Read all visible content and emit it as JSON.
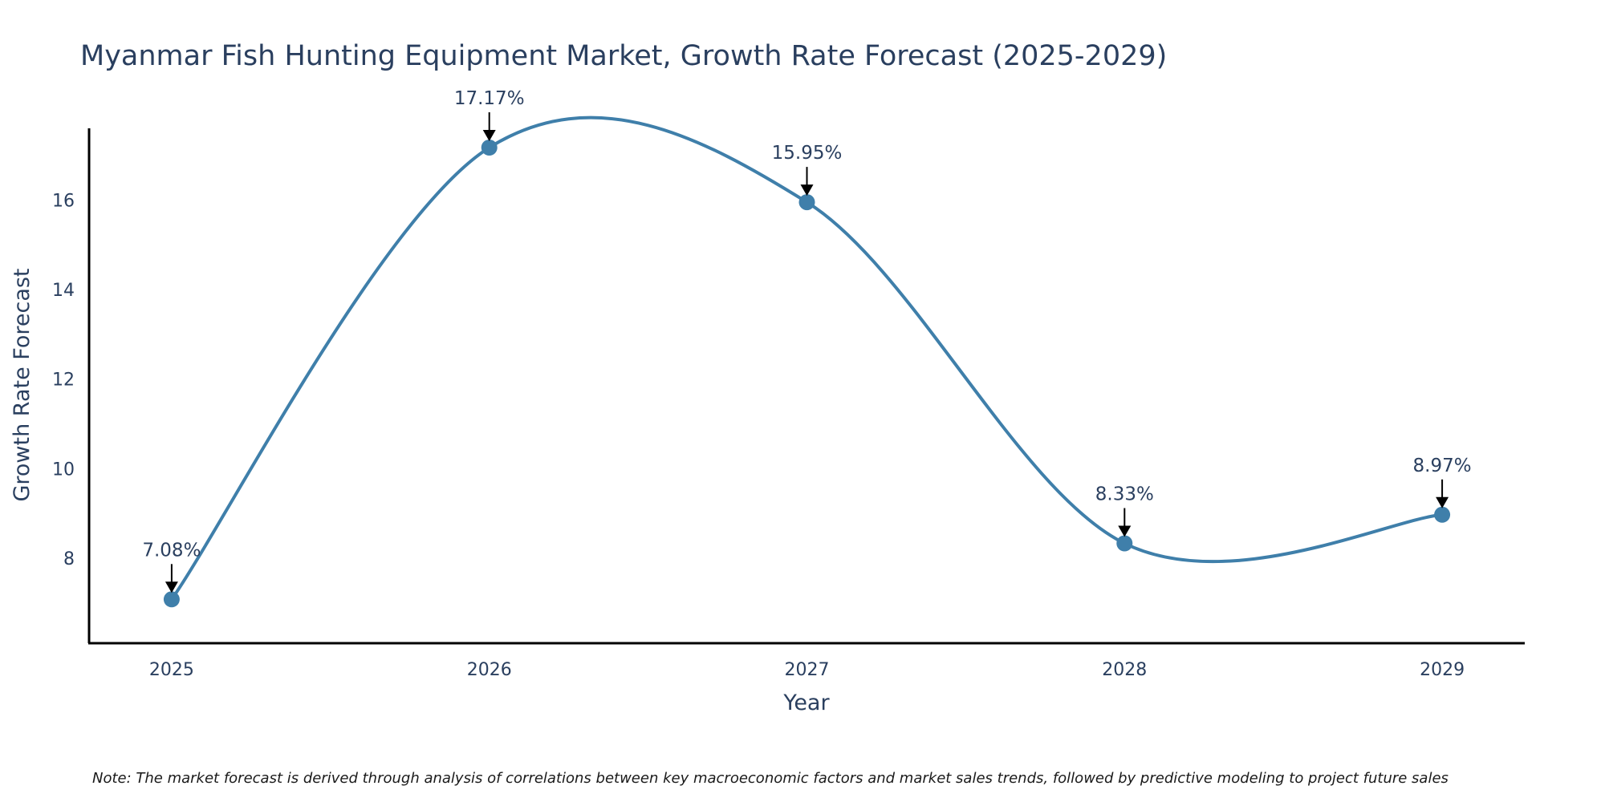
{
  "chart_data": {
    "type": "line",
    "title": "Myanmar Fish Hunting Equipment Market, Growth Rate Forecast (2025-2029)",
    "xlabel": "Year",
    "ylabel": "Growth Rate Forecast",
    "categories": [
      "2025",
      "2026",
      "2027",
      "2028",
      "2029"
    ],
    "values": [
      7.08,
      17.17,
      15.95,
      8.33,
      8.97
    ],
    "labels": [
      "7.08%",
      "17.17%",
      "15.95%",
      "8.33%",
      "8.97%"
    ],
    "yticks": [
      8,
      10,
      12,
      14,
      16
    ],
    "ytick_labels": [
      "8",
      "10",
      "12",
      "14",
      "16"
    ],
    "ylim": [
      6.1,
      17.6
    ],
    "xlim": [
      2024.74,
      2029.26
    ],
    "grid": false,
    "line_shape": "spline",
    "color": "#3f7faa",
    "note": "Note: The market forecast is derived through analysis of correlations between key macroeconomic factors and market sales trends, followed by predictive modeling to project future sales"
  }
}
